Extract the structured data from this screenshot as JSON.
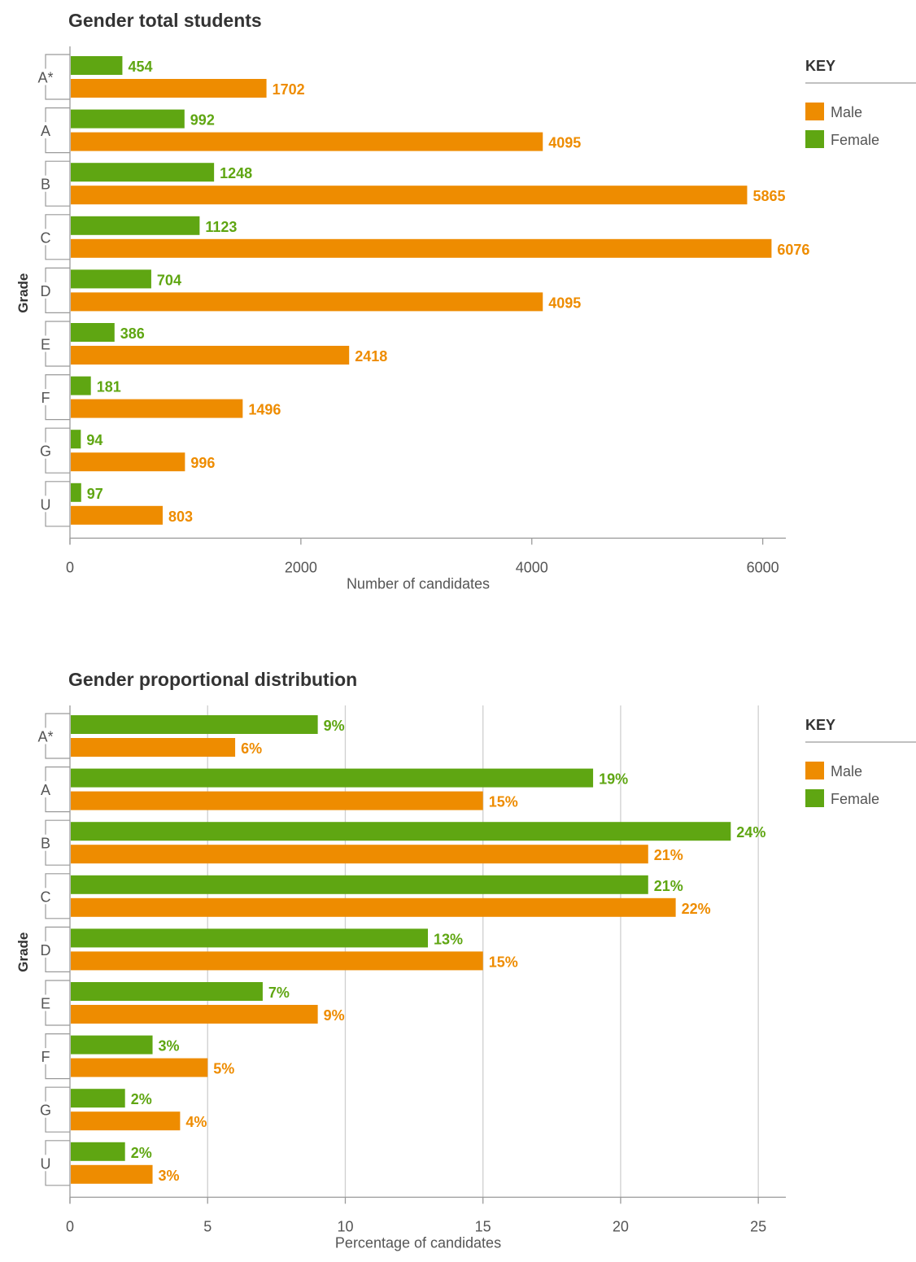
{
  "chart_data": [
    {
      "type": "bar",
      "orientation": "horizontal",
      "title": "Gender total students",
      "xlabel": "Number of candidates",
      "ylabel": "Grade",
      "categories": [
        "A*",
        "A",
        "B",
        "C",
        "D",
        "E",
        "F",
        "G",
        "U"
      ],
      "xlim": [
        0,
        6200
      ],
      "xticks": [
        "0",
        "2000",
        "4000",
        "6000"
      ],
      "tick_values": [
        0,
        2000,
        4000,
        6000
      ],
      "grid": false,
      "series": [
        {
          "name": "Female",
          "color": "#5fa612",
          "values": [
            454,
            992,
            1248,
            1123,
            704,
            386,
            181,
            94,
            97
          ],
          "labels": [
            "454",
            "992",
            "1248",
            "1123",
            "704",
            "386",
            "181",
            "94",
            "97"
          ]
        },
        {
          "name": "Male",
          "color": "#ee8c00",
          "values": [
            1702,
            4095,
            5865,
            6076,
            4095,
            2418,
            1496,
            996,
            803
          ],
          "labels": [
            "1702",
            "4095",
            "5865",
            "6076",
            "4095",
            "2418",
            "1496",
            "996",
            "803"
          ]
        }
      ],
      "legend": {
        "title": "KEY",
        "position": "right",
        "items": [
          "Male",
          "Female"
        ]
      }
    },
    {
      "type": "bar",
      "orientation": "horizontal",
      "title": "Gender proportional distribution",
      "xlabel": "Percentage of candidates",
      "ylabel": "Grade",
      "categories": [
        "A*",
        "A",
        "B",
        "C",
        "D",
        "E",
        "F",
        "G",
        "U"
      ],
      "xlim": [
        0,
        26
      ],
      "xticks": [
        "0",
        "5",
        "10",
        "15",
        "20",
        "25"
      ],
      "tick_values": [
        0,
        5,
        10,
        15,
        20,
        25
      ],
      "grid": true,
      "series": [
        {
          "name": "Female",
          "color": "#5fa612",
          "values": [
            9,
            19,
            24,
            21,
            13,
            7,
            3,
            2,
            2
          ],
          "labels": [
            "9%",
            "19%",
            "24%",
            "21%",
            "13%",
            "7%",
            "3%",
            "2%",
            "2%"
          ]
        },
        {
          "name": "Male",
          "color": "#ee8c00",
          "values": [
            6,
            15,
            21,
            22,
            15,
            9,
            5,
            4,
            3
          ],
          "labels": [
            "6%",
            "15%",
            "21%",
            "22%",
            "15%",
            "9%",
            "5%",
            "4%",
            "3%"
          ]
        }
      ],
      "legend": {
        "title": "KEY",
        "position": "right",
        "items": [
          "Male",
          "Female"
        ]
      }
    }
  ]
}
